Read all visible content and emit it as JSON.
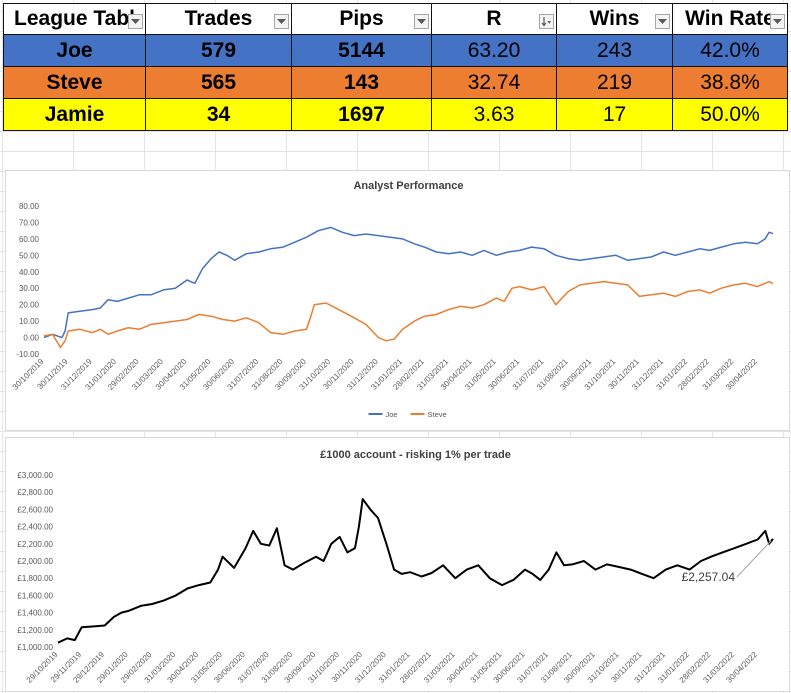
{
  "league_table": {
    "headers": [
      "League Tabl",
      "Trades",
      "Pips",
      "R",
      "Wins",
      "Win Rate"
    ],
    "rows": [
      {
        "name": "Joe",
        "trades": "579",
        "pips": "5144",
        "r": "63.20",
        "wins": "243",
        "win_rate": "42.0%"
      },
      {
        "name": "Steve",
        "trades": "565",
        "pips": "143",
        "r": "32.74",
        "wins": "219",
        "win_rate": "38.8%"
      },
      {
        "name": "Jamie",
        "trades": "34",
        "pips": "1697",
        "r": "3.63",
        "wins": "17",
        "win_rate": "50.0%"
      }
    ],
    "colors": {
      "joe": "#4472c4",
      "steve": "#ed7d31",
      "jamie": "#ffff00"
    }
  },
  "chart_data": [
    {
      "type": "line",
      "title": "Analyst Performance",
      "ylim": [
        -10,
        80
      ],
      "yticks": [
        "-10.00",
        "0.00",
        "10.00",
        "20.00",
        "30.00",
        "40.00",
        "50.00",
        "60.00",
        "70.00",
        "80.00"
      ],
      "xlim": [
        "30/10/2019",
        "20/05/2022"
      ],
      "xticks": [
        "30/10/2019",
        "30/11/2019",
        "31/12/2019",
        "31/01/2020",
        "29/02/2020",
        "31/03/2020",
        "30/04/2020",
        "31/05/2020",
        "30/06/2020",
        "31/07/2020",
        "31/08/2020",
        "30/09/2020",
        "31/10/2020",
        "30/11/2020",
        "31/12/2020",
        "31/01/2021",
        "28/02/2021",
        "31/03/2021",
        "30/04/2021",
        "31/05/2021",
        "30/06/2021",
        "31/07/2021",
        "31/08/2021",
        "30/09/2021",
        "31/10/2021",
        "30/11/2021",
        "31/12/2021",
        "31/01/2022",
        "28/02/2022",
        "31/03/2022",
        "30/04/2022"
      ],
      "grid": false,
      "legend": "bottom",
      "series": [
        {
          "name": "Joe",
          "color": "#4472c4",
          "points": [
            [
              "2019-10-30",
              0
            ],
            [
              "2019-11-10",
              2
            ],
            [
              "2019-11-22",
              0
            ],
            [
              "2019-11-26",
              4
            ],
            [
              "2019-11-30",
              15
            ],
            [
              "2019-12-15",
              16
            ],
            [
              "2019-12-31",
              17
            ],
            [
              "2020-01-10",
              18
            ],
            [
              "2020-01-20",
              23
            ],
            [
              "2020-02-01",
              22
            ],
            [
              "2020-02-15",
              24
            ],
            [
              "2020-02-29",
              26
            ],
            [
              "2020-03-15",
              26
            ],
            [
              "2020-03-31",
              29
            ],
            [
              "2020-04-15",
              30
            ],
            [
              "2020-04-30",
              35
            ],
            [
              "2020-05-10",
              33
            ],
            [
              "2020-05-20",
              42
            ],
            [
              "2020-05-31",
              48
            ],
            [
              "2020-06-10",
              52
            ],
            [
              "2020-06-20",
              50
            ],
            [
              "2020-06-30",
              47
            ],
            [
              "2020-07-15",
              51
            ],
            [
              "2020-07-31",
              52
            ],
            [
              "2020-08-15",
              54
            ],
            [
              "2020-08-31",
              55
            ],
            [
              "2020-09-15",
              58
            ],
            [
              "2020-09-30",
              61
            ],
            [
              "2020-10-15",
              65
            ],
            [
              "2020-10-31",
              67
            ],
            [
              "2020-11-15",
              64
            ],
            [
              "2020-11-30",
              62
            ],
            [
              "2020-12-15",
              63
            ],
            [
              "2020-12-31",
              62
            ],
            [
              "2021-01-15",
              61
            ],
            [
              "2021-01-31",
              60
            ],
            [
              "2021-02-15",
              57
            ],
            [
              "2021-02-28",
              55
            ],
            [
              "2021-03-15",
              52
            ],
            [
              "2021-03-31",
              51
            ],
            [
              "2021-04-15",
              52
            ],
            [
              "2021-04-30",
              50
            ],
            [
              "2021-05-15",
              53
            ],
            [
              "2021-05-31",
              50
            ],
            [
              "2021-06-15",
              52
            ],
            [
              "2021-06-30",
              53
            ],
            [
              "2021-07-15",
              55
            ],
            [
              "2021-07-31",
              54
            ],
            [
              "2021-08-15",
              50
            ],
            [
              "2021-08-31",
              48
            ],
            [
              "2021-09-15",
              47
            ],
            [
              "2021-09-30",
              48
            ],
            [
              "2021-10-15",
              49
            ],
            [
              "2021-10-31",
              50
            ],
            [
              "2021-11-15",
              47
            ],
            [
              "2021-11-30",
              48
            ],
            [
              "2021-12-15",
              49
            ],
            [
              "2021-12-31",
              52
            ],
            [
              "2022-01-15",
              50
            ],
            [
              "2022-01-31",
              52
            ],
            [
              "2022-02-15",
              54
            ],
            [
              "2022-02-28",
              53
            ],
            [
              "2022-03-15",
              55
            ],
            [
              "2022-03-31",
              57
            ],
            [
              "2022-04-15",
              58
            ],
            [
              "2022-04-30",
              57
            ],
            [
              "2022-05-10",
              60
            ],
            [
              "2022-05-15",
              64
            ],
            [
              "2022-05-20",
              63.2
            ]
          ]
        },
        {
          "name": "Steve",
          "color": "#ed7d31",
          "points": [
            [
              "2019-10-30",
              1
            ],
            [
              "2019-11-10",
              2
            ],
            [
              "2019-11-20",
              -6
            ],
            [
              "2019-11-26",
              -2
            ],
            [
              "2019-11-30",
              4
            ],
            [
              "2019-12-15",
              5
            ],
            [
              "2019-12-31",
              3
            ],
            [
              "2020-01-10",
              5
            ],
            [
              "2020-01-20",
              2
            ],
            [
              "2020-02-01",
              4
            ],
            [
              "2020-02-15",
              6
            ],
            [
              "2020-02-29",
              5
            ],
            [
              "2020-03-15",
              8
            ],
            [
              "2020-03-31",
              9
            ],
            [
              "2020-04-15",
              10
            ],
            [
              "2020-04-30",
              11
            ],
            [
              "2020-05-15",
              14
            ],
            [
              "2020-05-31",
              13
            ],
            [
              "2020-06-15",
              11
            ],
            [
              "2020-06-30",
              10
            ],
            [
              "2020-07-15",
              12
            ],
            [
              "2020-07-31",
              9
            ],
            [
              "2020-08-15",
              3
            ],
            [
              "2020-08-31",
              2
            ],
            [
              "2020-09-15",
              4
            ],
            [
              "2020-09-30",
              5
            ],
            [
              "2020-10-05",
              12
            ],
            [
              "2020-10-10",
              20
            ],
            [
              "2020-10-25",
              21
            ],
            [
              "2020-11-10",
              17
            ],
            [
              "2020-11-30",
              12
            ],
            [
              "2020-12-15",
              8
            ],
            [
              "2020-12-31",
              0
            ],
            [
              "2021-01-10",
              -2
            ],
            [
              "2021-01-20",
              -1
            ],
            [
              "2021-01-31",
              5
            ],
            [
              "2021-02-15",
              10
            ],
            [
              "2021-02-28",
              13
            ],
            [
              "2021-03-15",
              14
            ],
            [
              "2021-03-31",
              17
            ],
            [
              "2021-04-15",
              19
            ],
            [
              "2021-04-30",
              18
            ],
            [
              "2021-05-15",
              20
            ],
            [
              "2021-05-31",
              24
            ],
            [
              "2021-06-10",
              22
            ],
            [
              "2021-06-20",
              30
            ],
            [
              "2021-06-30",
              31
            ],
            [
              "2021-07-15",
              29
            ],
            [
              "2021-07-31",
              31
            ],
            [
              "2021-08-15",
              20
            ],
            [
              "2021-08-31",
              28
            ],
            [
              "2021-09-15",
              32
            ],
            [
              "2021-09-30",
              33
            ],
            [
              "2021-10-15",
              34
            ],
            [
              "2021-10-31",
              33
            ],
            [
              "2021-11-15",
              32
            ],
            [
              "2021-11-30",
              25
            ],
            [
              "2021-12-15",
              26
            ],
            [
              "2021-12-31",
              27
            ],
            [
              "2022-01-15",
              25
            ],
            [
              "2022-01-31",
              28
            ],
            [
              "2022-02-15",
              29
            ],
            [
              "2022-02-28",
              27
            ],
            [
              "2022-03-15",
              30
            ],
            [
              "2022-03-31",
              32
            ],
            [
              "2022-04-15",
              33
            ],
            [
              "2022-04-30",
              31
            ],
            [
              "2022-05-15",
              34
            ],
            [
              "2022-05-20",
              32.74
            ]
          ]
        }
      ]
    },
    {
      "type": "line",
      "title": "£1000 account - risking 1% per trade",
      "ylim": [
        1000,
        3000
      ],
      "yticks": [
        "£1,000.00",
        "£1,200.00",
        "£1,400.00",
        "£1,600.00",
        "£1,800.00",
        "£2,000.00",
        "£2,200.00",
        "£2,400.00",
        "£2,600.00",
        "£2,800.00",
        "£3,000.00"
      ],
      "xlim": [
        "29/10/2019",
        "20/05/2022"
      ],
      "xticks": [
        "29/10/2019",
        "29/11/2019",
        "29/12/2019",
        "29/01/2020",
        "29/02/2020",
        "31/03/2020",
        "30/04/2020",
        "31/05/2020",
        "30/06/2020",
        "31/07/2020",
        "31/08/2020",
        "30/09/2020",
        "31/10/2020",
        "30/11/2020",
        "31/12/2020",
        "31/01/2021",
        "28/02/2021",
        "31/03/2021",
        "30/04/2021",
        "31/05/2021",
        "30/06/2021",
        "31/07/2021",
        "31/08/2021",
        "30/09/2021",
        "31/10/2021",
        "30/11/2021",
        "31/12/2021",
        "31/01/2022",
        "28/02/2022",
        "31/03/2022",
        "30/04/2022"
      ],
      "grid": false,
      "annotation": {
        "text": "£2,257.04",
        "value": 2257.04,
        "date": "2022-05-20"
      },
      "series": [
        {
          "name": "",
          "color": "#000000",
          "points": [
            [
              "2019-10-29",
              1050
            ],
            [
              "2019-11-10",
              1100
            ],
            [
              "2019-11-20",
              1080
            ],
            [
              "2019-11-29",
              1230
            ],
            [
              "2019-12-15",
              1240
            ],
            [
              "2019-12-29",
              1250
            ],
            [
              "2020-01-10",
              1350
            ],
            [
              "2020-01-20",
              1400
            ],
            [
              "2020-01-29",
              1420
            ],
            [
              "2020-02-15",
              1480
            ],
            [
              "2020-02-29",
              1500
            ],
            [
              "2020-03-15",
              1540
            ],
            [
              "2020-03-31",
              1600
            ],
            [
              "2020-04-15",
              1680
            ],
            [
              "2020-04-30",
              1720
            ],
            [
              "2020-05-15",
              1750
            ],
            [
              "2020-05-25",
              1900
            ],
            [
              "2020-05-31",
              2050
            ],
            [
              "2020-06-15",
              1920
            ],
            [
              "2020-06-30",
              2150
            ],
            [
              "2020-07-10",
              2350
            ],
            [
              "2020-07-20",
              2200
            ],
            [
              "2020-07-31",
              2180
            ],
            [
              "2020-08-10",
              2380
            ],
            [
              "2020-08-20",
              1950
            ],
            [
              "2020-08-31",
              1900
            ],
            [
              "2020-09-15",
              1980
            ],
            [
              "2020-09-30",
              2050
            ],
            [
              "2020-10-10",
              2000
            ],
            [
              "2020-10-20",
              2200
            ],
            [
              "2020-10-31",
              2280
            ],
            [
              "2020-11-10",
              2100
            ],
            [
              "2020-11-20",
              2150
            ],
            [
              "2020-11-25",
              2400
            ],
            [
              "2020-11-30",
              2720
            ],
            [
              "2020-12-10",
              2600
            ],
            [
              "2020-12-20",
              2500
            ],
            [
              "2020-12-31",
              2200
            ],
            [
              "2021-01-10",
              1900
            ],
            [
              "2021-01-20",
              1850
            ],
            [
              "2021-01-31",
              1870
            ],
            [
              "2021-02-15",
              1820
            ],
            [
              "2021-02-28",
              1860
            ],
            [
              "2021-03-15",
              1950
            ],
            [
              "2021-03-31",
              1800
            ],
            [
              "2021-04-15",
              1900
            ],
            [
              "2021-04-30",
              1950
            ],
            [
              "2021-05-15",
              1800
            ],
            [
              "2021-05-31",
              1720
            ],
            [
              "2021-06-15",
              1780
            ],
            [
              "2021-06-30",
              1900
            ],
            [
              "2021-07-10",
              1850
            ],
            [
              "2021-07-20",
              1780
            ],
            [
              "2021-07-31",
              1900
            ],
            [
              "2021-08-10",
              2100
            ],
            [
              "2021-08-20",
              1950
            ],
            [
              "2021-08-31",
              1960
            ],
            [
              "2021-09-15",
              2000
            ],
            [
              "2021-09-30",
              1900
            ],
            [
              "2021-10-15",
              1960
            ],
            [
              "2021-10-31",
              1930
            ],
            [
              "2021-11-15",
              1900
            ],
            [
              "2021-11-30",
              1850
            ],
            [
              "2021-12-15",
              1800
            ],
            [
              "2021-12-31",
              1900
            ],
            [
              "2022-01-15",
              1950
            ],
            [
              "2022-01-31",
              1900
            ],
            [
              "2022-02-15",
              2000
            ],
            [
              "2022-02-28",
              2050
            ],
            [
              "2022-03-15",
              2100
            ],
            [
              "2022-03-31",
              2150
            ],
            [
              "2022-04-15",
              2200
            ],
            [
              "2022-04-30",
              2250
            ],
            [
              "2022-05-10",
              2350
            ],
            [
              "2022-05-15",
              2200
            ],
            [
              "2022-05-20",
              2257.04
            ]
          ]
        }
      ]
    }
  ]
}
